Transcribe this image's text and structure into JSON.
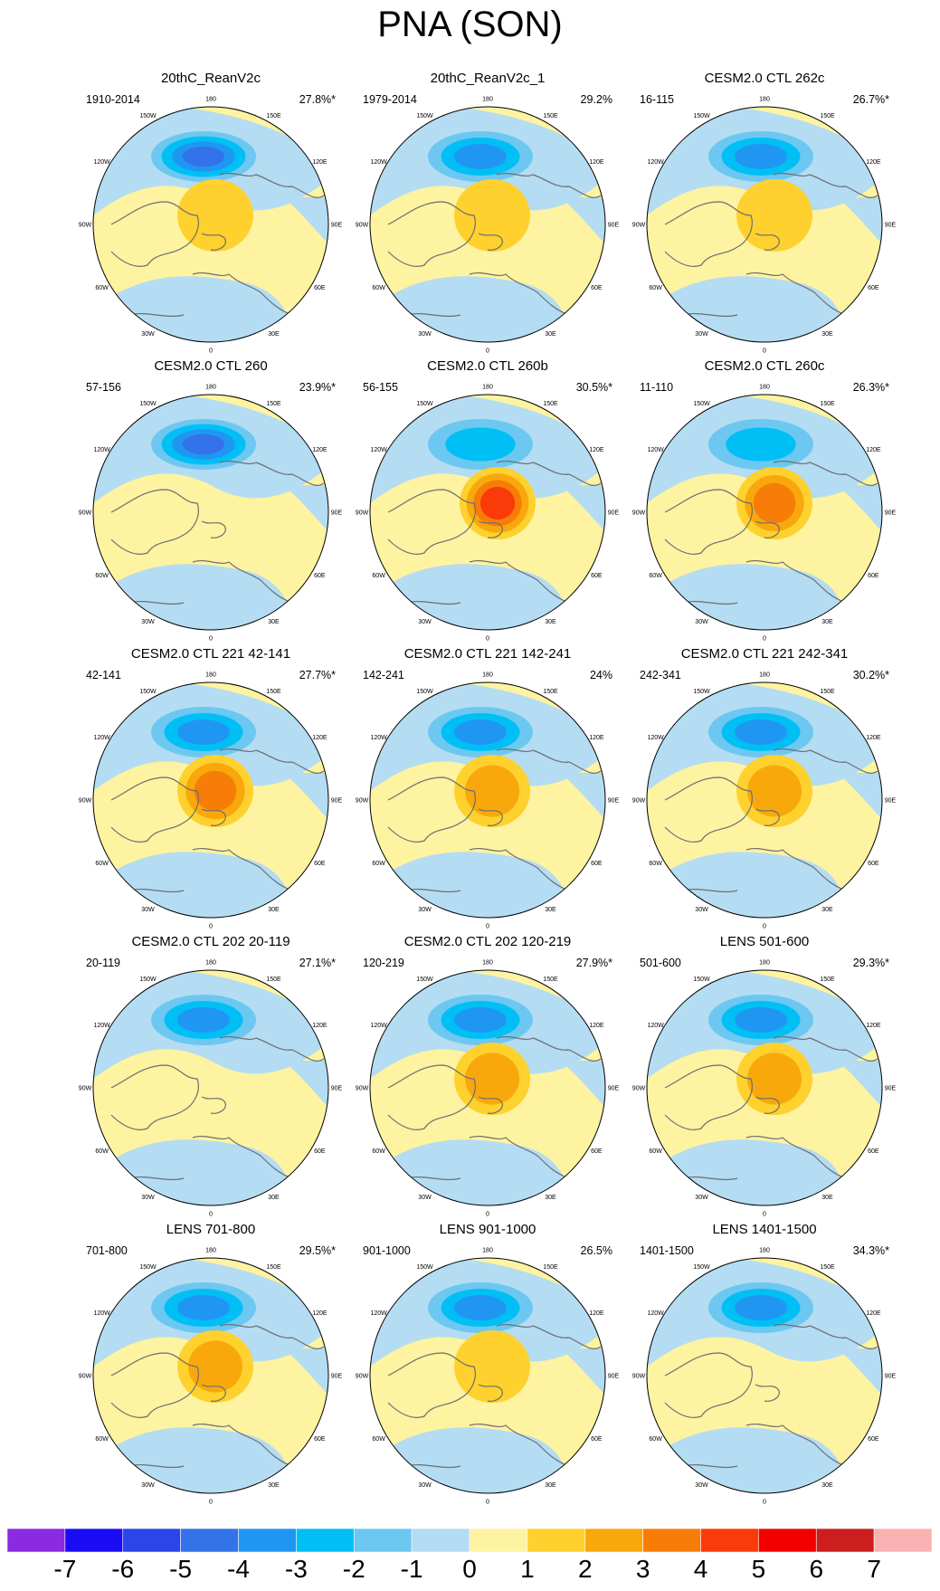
{
  "title": "PNA (SON)",
  "degree_labels": [
    "180",
    "150E",
    "120E",
    "90E",
    "60E",
    "30E",
    "0",
    "30W",
    "60W",
    "90W",
    "120W",
    "150W"
  ],
  "panels": [
    {
      "title": "20thC_ReanV2c",
      "years": "1910-2014",
      "variance": "27.8%*",
      "neg": 5,
      "pos": 2,
      "negshift": 0,
      "posshift": 0
    },
    {
      "title": "20thC_ReanV2c_1",
      "years": "1979-2014",
      "variance": "29.2%",
      "neg": 4,
      "pos": 2,
      "negshift": 0,
      "posshift": 0
    },
    {
      "title": "CESM2.0 CTL 262c",
      "years": "16-115",
      "variance": "26.7%*",
      "neg": 4,
      "pos": 2,
      "negshift": 1,
      "posshift": 1
    },
    {
      "title": "CESM2.0 CTL 260",
      "years": "57-156",
      "variance": "23.9%*",
      "neg": 5,
      "pos": 1,
      "negshift": 0,
      "posshift": 0
    },
    {
      "title": "CESM2.0 CTL 260b",
      "years": "56-155",
      "variance": "30.5%*",
      "neg": 3,
      "pos": 5,
      "negshift": 0,
      "posshift": 1
    },
    {
      "title": "CESM2.0 CTL 260c",
      "years": "11-110",
      "variance": "26.3%*",
      "neg": 3,
      "pos": 4,
      "negshift": 1,
      "posshift": 1
    },
    {
      "title": "CESM2.0 CTL 221 42-141",
      "years": "42-141",
      "variance": "27.7%*",
      "neg": 4,
      "pos": 4,
      "negshift": 0,
      "posshift": 0
    },
    {
      "title": "CESM2.0 CTL 221 142-241",
      "years": "142-241",
      "variance": "24%",
      "neg": 4,
      "pos": 3,
      "negshift": 0,
      "posshift": 0
    },
    {
      "title": "CESM2.0 CTL 221 242-341",
      "years": "242-341",
      "variance": "30.2%*",
      "neg": 4,
      "pos": 3,
      "negshift": 1,
      "posshift": 1
    },
    {
      "title": "CESM2.0 CTL 202 20-119",
      "years": "20-119",
      "variance": "27.1%*",
      "neg": 4,
      "pos": 1,
      "negshift": 0,
      "posshift": 0
    },
    {
      "title": "CESM2.0 CTL 202 120-219",
      "years": "120-219",
      "variance": "27.9%*",
      "neg": 4,
      "pos": 3,
      "negshift": 0,
      "posshift": 0
    },
    {
      "title": "LENS 501-600",
      "years": "501-600",
      "variance": "29.3%*",
      "neg": 4,
      "pos": 3,
      "negshift": 1,
      "posshift": 1
    },
    {
      "title": "LENS 701-800",
      "years": "701-800",
      "variance": "29.5%*",
      "neg": 4,
      "pos": 3,
      "negshift": 0,
      "posshift": 0
    },
    {
      "title": "LENS 901-1000",
      "years": "901-1000",
      "variance": "26.5%",
      "neg": 4,
      "pos": 2,
      "negshift": 0,
      "posshift": 0
    },
    {
      "title": "LENS 1401-1500",
      "years": "1401-1500",
      "variance": "34.3%*",
      "neg": 4,
      "pos": 1,
      "negshift": 1,
      "posshift": 0
    }
  ],
  "colorbar": {
    "ticks": [
      "-7",
      "-6",
      "-5",
      "-4",
      "-3",
      "-2",
      "-1",
      "0",
      "1",
      "2",
      "3",
      "4",
      "5",
      "6",
      "7"
    ],
    "colors": [
      "#8a2be2",
      "#1a0df5",
      "#2a45ea",
      "#3372e8",
      "#1f97f2",
      "#00bff5",
      "#6cc8f0",
      "#b4dcf3",
      "#fdf3a1",
      "#fed12e",
      "#f9a80b",
      "#f87d08",
      "#fb3a0a",
      "#f20000",
      "#cc1e1e",
      "#f8b2b2"
    ]
  }
}
